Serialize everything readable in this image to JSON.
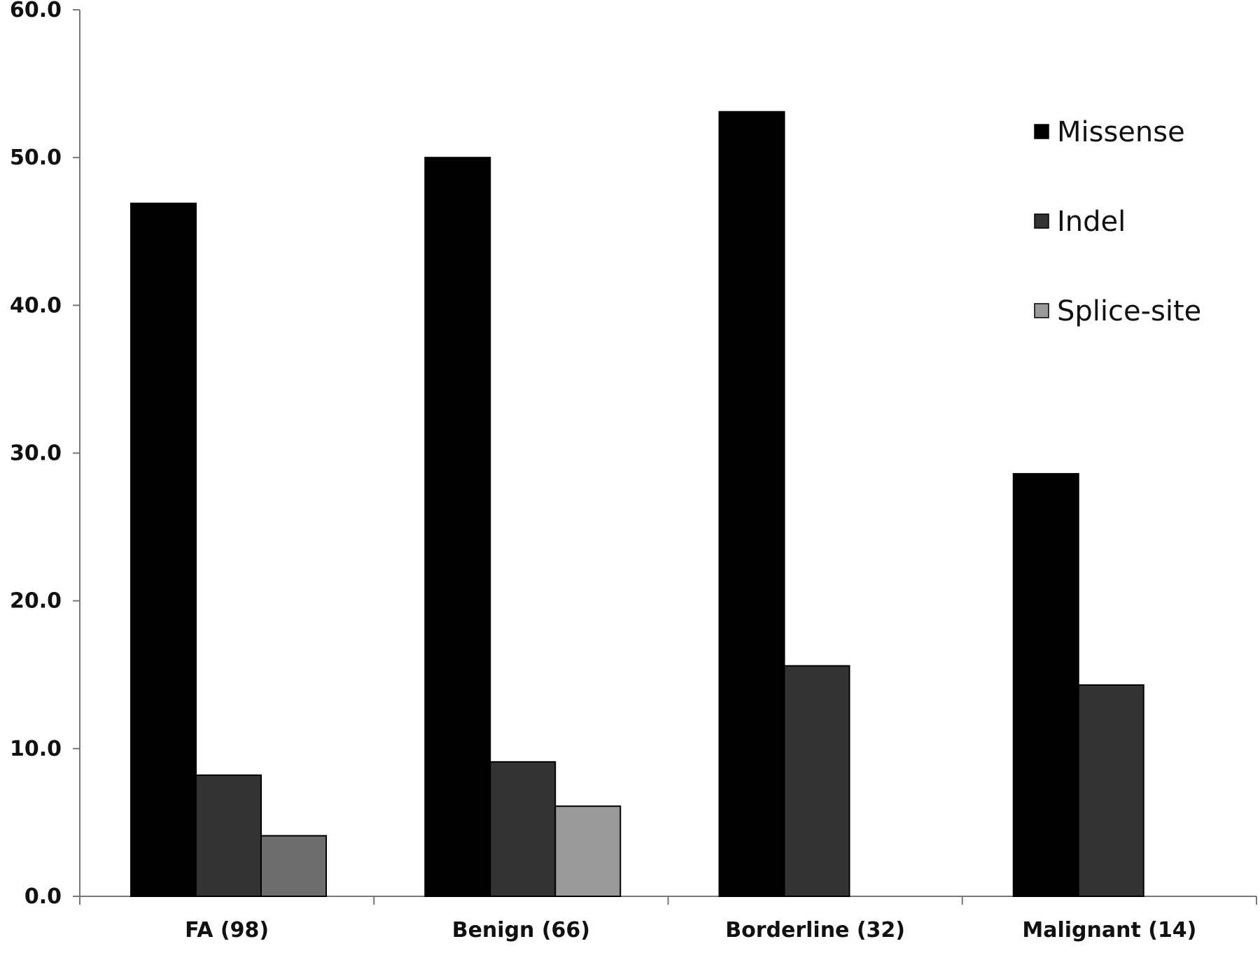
{
  "chart_data": {
    "type": "bar",
    "title": "",
    "xlabel": "",
    "ylabel": "",
    "categories": [
      "FA (98)",
      "Benign (66)",
      "Borderline (32)",
      "Malignant (14)"
    ],
    "series": [
      {
        "name": "Missense",
        "color": "#000000",
        "values": [
          46.9,
          50.0,
          53.1,
          28.6
        ]
      },
      {
        "name": "Indel",
        "color": "#333333",
        "values": [
          8.2,
          9.1,
          15.6,
          14.3
        ]
      },
      {
        "name": "Splice-site",
        "color_by_category": [
          "#6e6e6e",
          "#9a9a9a",
          "#9a9a9a",
          "#9a9a9a"
        ],
        "values": [
          4.1,
          6.1,
          0,
          0
        ]
      }
    ],
    "ylim": [
      0,
      60
    ],
    "yticks": [
      "0.0",
      "10.0",
      "20.0",
      "30.0",
      "40.0",
      "50.0",
      "60.0"
    ],
    "grid": false,
    "legend_position": "top-right"
  }
}
